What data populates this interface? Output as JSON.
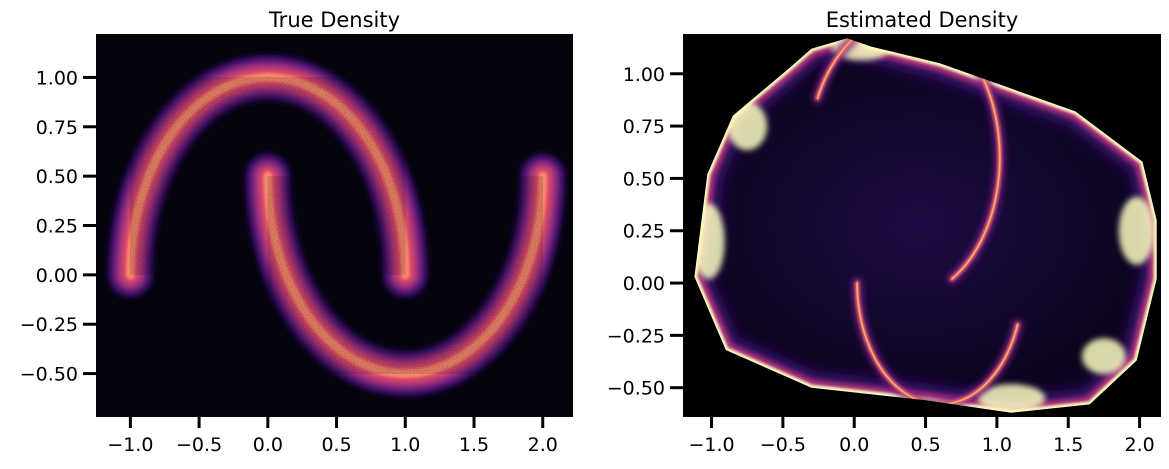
{
  "chart_data": [
    {
      "type": "heatmap",
      "title": "True Density",
      "xlabel": "",
      "ylabel": "",
      "xlim": [
        -1.25,
        2.22
      ],
      "ylim": [
        -0.72,
        1.22
      ],
      "xticks": [
        -1.0,
        -0.5,
        0.0,
        0.5,
        1.0,
        1.5,
        2.0
      ],
      "xtick_labels": [
        "−1.0",
        "−0.5",
        "0.0",
        "0.5",
        "1.0",
        "1.5",
        "2.0"
      ],
      "yticks": [
        -0.5,
        -0.25,
        0.0,
        0.25,
        0.5,
        0.75,
        1.0
      ],
      "ytick_labels": [
        "−0.50",
        "−0.25",
        "0.00",
        "0.25",
        "0.50",
        "0.75",
        "1.00"
      ],
      "colormap": "magma",
      "background": "#04040c",
      "structures": [
        {
          "shape": "upper-moon-arc",
          "center": [
            0.0,
            0.0
          ],
          "radius": 1.0,
          "angle_range_deg": [
            0,
            180
          ],
          "noise": 0.05
        },
        {
          "shape": "lower-moon-arc",
          "center": [
            1.0,
            0.5
          ],
          "radius": 1.0,
          "angle_range_deg": [
            180,
            360
          ],
          "noise": 0.05
        }
      ]
    },
    {
      "type": "heatmap",
      "title": "Estimated Density",
      "xlabel": "",
      "ylabel": "",
      "xlim": [
        -1.2,
        2.15
      ],
      "ylim": [
        -0.64,
        1.19
      ],
      "xticks": [
        -1.0,
        -0.5,
        0.0,
        0.5,
        1.0,
        1.5,
        2.0
      ],
      "xtick_labels": [
        "−1.0",
        "−0.5",
        "0.0",
        "0.5",
        "1.0",
        "1.5",
        "2.0"
      ],
      "yticks": [
        -0.5,
        -0.25,
        0.0,
        0.25,
        0.5,
        0.75,
        1.0
      ],
      "ytick_labels": [
        "−0.50",
        "−0.25",
        "0.00",
        "0.25",
        "0.50",
        "0.75",
        "1.00"
      ],
      "colormap": "magma",
      "background": "#000000",
      "support_outline": [
        [
          -0.05,
          1.17
        ],
        [
          0.12,
          1.13
        ],
        [
          0.6,
          1.05
        ],
        [
          1.55,
          0.82
        ],
        [
          2.02,
          0.58
        ],
        [
          2.12,
          0.3
        ],
        [
          2.12,
          0.02
        ],
        [
          1.98,
          -0.37
        ],
        [
          1.65,
          -0.58
        ],
        [
          1.1,
          -0.62
        ],
        [
          0.5,
          -0.56
        ],
        [
          -0.3,
          -0.5
        ],
        [
          -0.9,
          -0.32
        ],
        [
          -1.12,
          0.03
        ],
        [
          -1.03,
          0.52
        ],
        [
          -0.85,
          0.8
        ],
        [
          -0.45,
          1.03
        ],
        [
          -0.3,
          1.12
        ]
      ],
      "structures": [
        {
          "shape": "bright-rim",
          "note": "high density along edge of support"
        },
        {
          "shape": "inner-arc-1",
          "center": [
            0.35,
            0.6
          ],
          "radius": 0.67,
          "angle_range_deg": [
            -60,
            155
          ]
        },
        {
          "shape": "inner-arc-2",
          "center": [
            0.6,
            0.0
          ],
          "radius": 0.58,
          "angle_range_deg": [
            180,
            340
          ]
        }
      ]
    }
  ]
}
